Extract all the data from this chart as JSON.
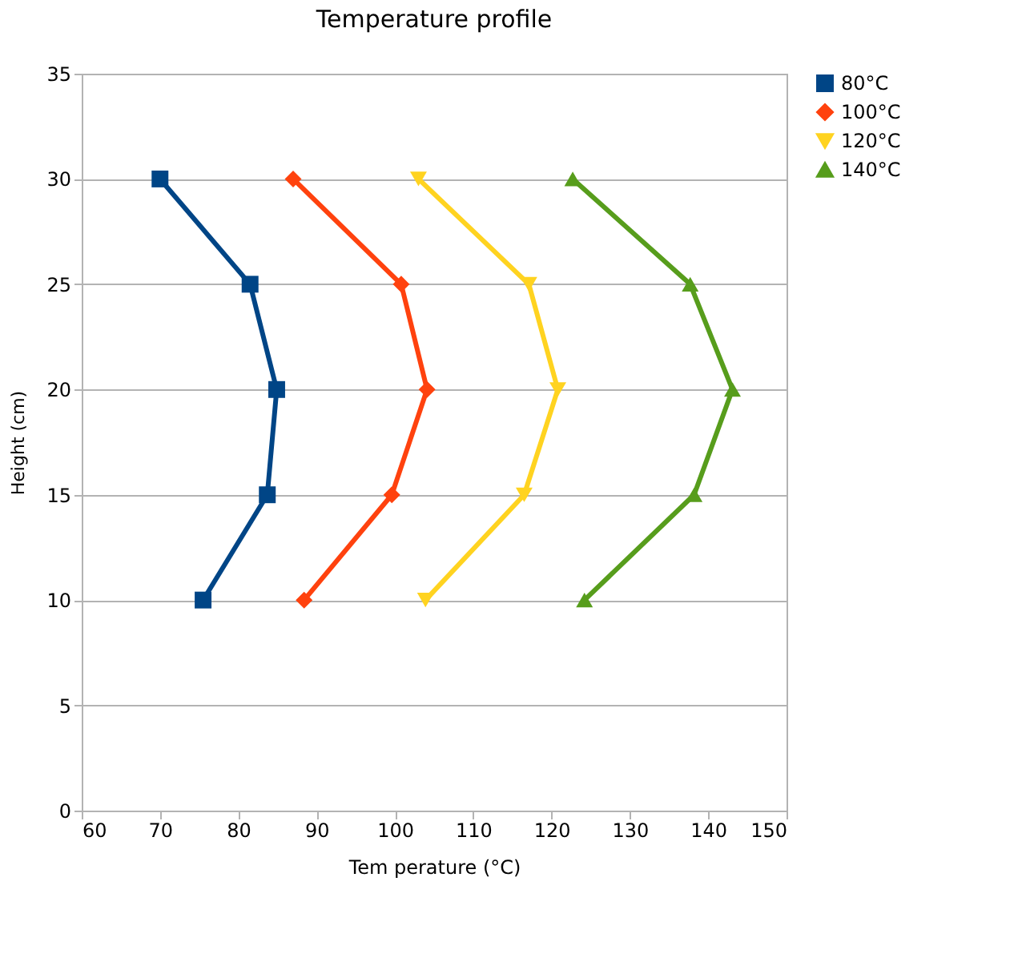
{
  "chart_data": {
    "type": "line",
    "title": "Temperature profile",
    "xlabel": "Tem perature (°C)",
    "ylabel": "Height (cm)",
    "xlim": [
      60,
      150
    ],
    "xticks": [
      60,
      70,
      80,
      90,
      100,
      110,
      120,
      130,
      140,
      150
    ],
    "ylim": [
      0,
      35
    ],
    "yticks": [
      0,
      5,
      10,
      15,
      20,
      25,
      30,
      35
    ],
    "grid": "y",
    "legend": "right",
    "line_style": "solid",
    "series": [
      {
        "name": "80°C",
        "color": "#004586",
        "marker": "square",
        "x": [
          70,
          81.5,
          84.9,
          83.7,
          75.5
        ],
        "values": [
          30,
          25,
          20,
          15,
          10
        ]
      },
      {
        "name": "100°C",
        "color": "#ff420e",
        "marker": "diamond",
        "x": [
          87,
          100.8,
          104.1,
          99.6,
          88.4
        ],
        "values": [
          30,
          25,
          20,
          15,
          10
        ]
      },
      {
        "name": "120°C",
        "color": "#ffd320",
        "marker": "triangle-down",
        "x": [
          103,
          117.1,
          120.8,
          116.5,
          103.9
        ],
        "values": [
          30,
          25,
          20,
          15,
          10
        ]
      },
      {
        "name": "140°C",
        "color": "#579d1c",
        "marker": "triangle-up",
        "x": [
          122.7,
          137.7,
          143.1,
          138.2,
          124.2
        ],
        "values": [
          30,
          25,
          20,
          15,
          10
        ]
      }
    ]
  }
}
